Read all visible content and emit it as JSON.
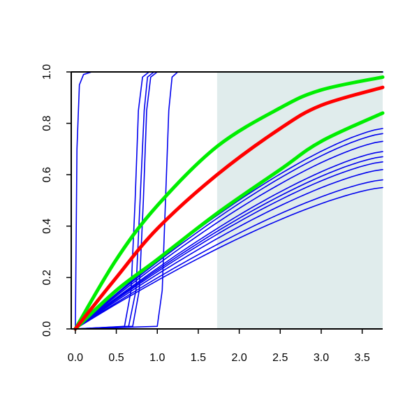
{
  "chart_data": {
    "type": "line",
    "title": "",
    "xlabel": "",
    "ylabel": "",
    "xlim": [
      -0.05,
      3.75
    ],
    "ylim": [
      0,
      1
    ],
    "x_ticks": [
      "0.0",
      "0.5",
      "1.0",
      "1.5",
      "2.0",
      "2.5",
      "3.0",
      "3.5"
    ],
    "x_tick_values": [
      0.0,
      0.5,
      1.0,
      1.5,
      2.0,
      2.5,
      3.0,
      3.5
    ],
    "y_ticks": [
      "0.0",
      "0.2",
      "0.4",
      "0.6",
      "0.8",
      "1.0"
    ],
    "y_tick_values": [
      0.0,
      0.2,
      0.4,
      0.6,
      0.8,
      1.0
    ],
    "grid": false,
    "shaded_region": {
      "x_from": 1.73,
      "x_to": 3.75,
      "color": "#e0ecec"
    },
    "series": [
      {
        "color": "#ff0000",
        "width": "thick",
        "x": [
          0,
          0.5,
          1.0,
          1.73,
          2.5,
          3.0,
          3.75
        ],
        "y": [
          0,
          0.2,
          0.39,
          0.6,
          0.78,
          0.87,
          0.94
        ]
      },
      {
        "color": "#00ee00",
        "width": "thick",
        "x": [
          0,
          0.5,
          1.0,
          1.73,
          2.5,
          3.0,
          3.75
        ],
        "y": [
          0,
          0.27,
          0.48,
          0.71,
          0.86,
          0.93,
          0.98
        ]
      },
      {
        "color": "#00ee00",
        "width": "thick",
        "x": [
          0,
          0.5,
          1.0,
          1.73,
          2.5,
          3.0,
          3.75
        ],
        "y": [
          0,
          0.15,
          0.27,
          0.45,
          0.62,
          0.73,
          0.84
        ]
      },
      {
        "color": "#0000ee",
        "width": "thin",
        "x": [
          0,
          0.02,
          0.05,
          0.1,
          0.2,
          3.75
        ],
        "y": [
          0,
          0.7,
          0.95,
          0.99,
          1.0,
          1.0
        ]
      },
      {
        "color": "#0000ee",
        "width": "thin",
        "x": [
          0,
          0.6,
          0.68,
          0.73,
          0.77,
          0.82,
          0.9,
          3.75
        ],
        "y": [
          0,
          0.01,
          0.15,
          0.5,
          0.85,
          0.98,
          1.0,
          1.0
        ]
      },
      {
        "color": "#0000ee",
        "width": "thin",
        "x": [
          0,
          0.65,
          0.74,
          0.79,
          0.84,
          0.88,
          0.96,
          3.75
        ],
        "y": [
          0,
          0.01,
          0.15,
          0.5,
          0.85,
          0.98,
          1.0,
          1.0
        ]
      },
      {
        "color": "#0000ee",
        "width": "thin",
        "x": [
          0,
          0.7,
          0.78,
          0.83,
          0.87,
          0.92,
          1.0,
          3.75
        ],
        "y": [
          0,
          0.01,
          0.15,
          0.5,
          0.85,
          0.98,
          1.0,
          1.0
        ]
      },
      {
        "color": "#0000ee",
        "width": "thin",
        "x": [
          0,
          1.0,
          1.06,
          1.1,
          1.14,
          1.18,
          1.25,
          3.75
        ],
        "y": [
          0,
          0.01,
          0.15,
          0.5,
          0.85,
          0.98,
          1.0,
          1.0
        ]
      },
      {
        "color": "#0000ee",
        "width": "thin",
        "x": [
          0,
          3.75
        ],
        "y": [
          0,
          0.78
        ],
        "shape": "curve"
      },
      {
        "color": "#0000ee",
        "width": "thin",
        "x": [
          0,
          3.75
        ],
        "y": [
          0,
          0.76
        ],
        "shape": "curve"
      },
      {
        "color": "#0000ee",
        "width": "thin",
        "x": [
          0,
          3.75
        ],
        "y": [
          0,
          0.73
        ],
        "shape": "curve"
      },
      {
        "color": "#0000ee",
        "width": "thin",
        "x": [
          0,
          3.75
        ],
        "y": [
          0,
          0.69
        ],
        "shape": "curve"
      },
      {
        "color": "#0000ee",
        "width": "thin",
        "x": [
          0,
          3.75
        ],
        "y": [
          0,
          0.67
        ],
        "shape": "curve"
      },
      {
        "color": "#0000ee",
        "width": "thin",
        "x": [
          0,
          3.75
        ],
        "y": [
          0,
          0.65
        ],
        "shape": "curve"
      },
      {
        "color": "#0000ee",
        "width": "thin",
        "x": [
          0,
          3.75
        ],
        "y": [
          0,
          0.62
        ],
        "shape": "curve"
      },
      {
        "color": "#0000ee",
        "width": "thin",
        "x": [
          0,
          3.75
        ],
        "y": [
          0,
          0.58
        ],
        "shape": "curve"
      },
      {
        "color": "#0000ee",
        "width": "thin",
        "x": [
          0,
          3.75
        ],
        "y": [
          0,
          0.55
        ],
        "shape": "curve"
      }
    ]
  }
}
